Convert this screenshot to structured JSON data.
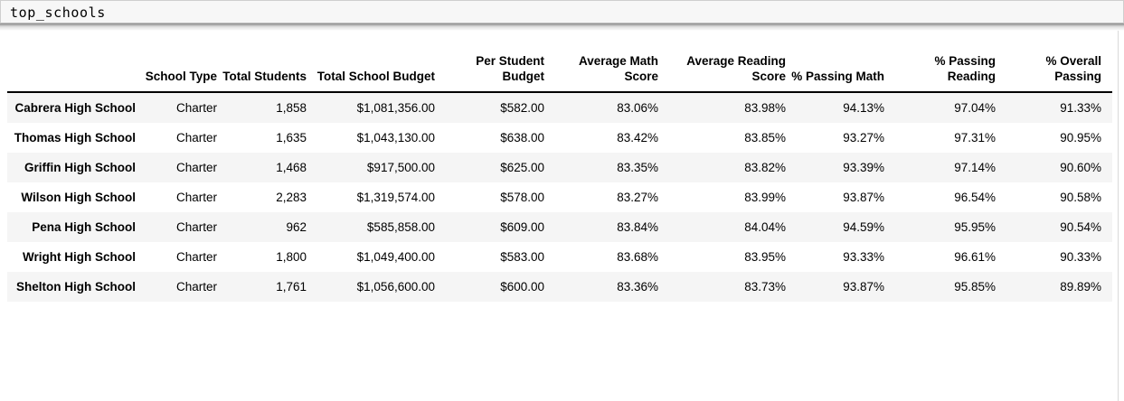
{
  "code_cell": {
    "source": "top_schools"
  },
  "table": {
    "index_header": "",
    "columns": [
      "School Type",
      "Total Students",
      "Total School Budget",
      "Per Student Budget",
      "Average Math Score",
      "Average Reading Score",
      "% Passing Math",
      "% Passing Reading",
      "% Overall Passing"
    ],
    "rows": [
      {
        "name": "Cabrera High School",
        "values": [
          "Charter",
          "1,858",
          "$1,081,356.00",
          "$582.00",
          "83.06%",
          "83.98%",
          "94.13%",
          "97.04%",
          "91.33%"
        ]
      },
      {
        "name": "Thomas High School",
        "values": [
          "Charter",
          "1,635",
          "$1,043,130.00",
          "$638.00",
          "83.42%",
          "83.85%",
          "93.27%",
          "97.31%",
          "90.95%"
        ]
      },
      {
        "name": "Griffin High School",
        "values": [
          "Charter",
          "1,468",
          "$917,500.00",
          "$625.00",
          "83.35%",
          "83.82%",
          "93.39%",
          "97.14%",
          "90.60%"
        ]
      },
      {
        "name": "Wilson High School",
        "values": [
          "Charter",
          "2,283",
          "$1,319,574.00",
          "$578.00",
          "83.27%",
          "83.99%",
          "93.87%",
          "96.54%",
          "90.58%"
        ]
      },
      {
        "name": "Pena High School",
        "values": [
          "Charter",
          "962",
          "$585,858.00",
          "$609.00",
          "83.84%",
          "84.04%",
          "94.59%",
          "95.95%",
          "90.54%"
        ]
      },
      {
        "name": "Wright High School",
        "values": [
          "Charter",
          "1,800",
          "$1,049,400.00",
          "$583.00",
          "83.68%",
          "83.95%",
          "93.33%",
          "96.61%",
          "90.33%"
        ]
      },
      {
        "name": "Shelton High School",
        "values": [
          "Charter",
          "1,761",
          "$1,056,600.00",
          "$600.00",
          "83.36%",
          "83.73%",
          "93.87%",
          "95.85%",
          "89.89%"
        ]
      }
    ]
  },
  "colors": {
    "stripe": "#f5f5f5",
    "header_border": "#000000",
    "code_cell_bg": "#f7f7f7",
    "code_cell_border": "#cfcfcf"
  }
}
